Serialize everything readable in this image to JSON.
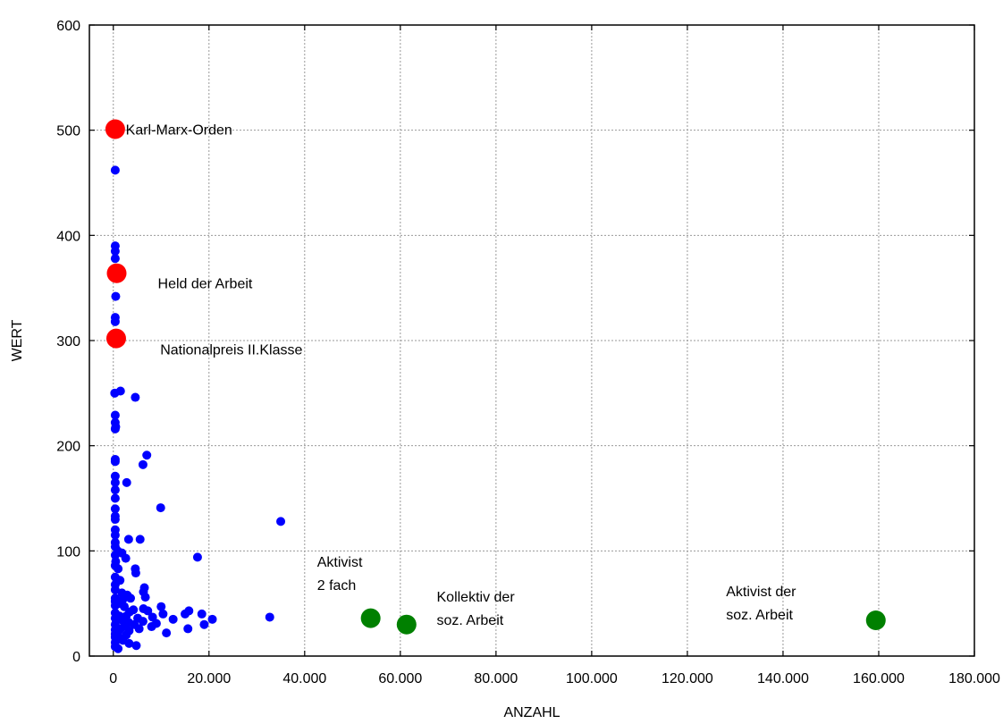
{
  "chart_data": {
    "type": "scatter",
    "xlabel": "ANZAHL",
    "ylabel": "WERT",
    "xlim": [
      -5000,
      180000
    ],
    "ylim": [
      0,
      600
    ],
    "x_ticks": [
      0,
      20000,
      40000,
      60000,
      80000,
      100000,
      120000,
      140000,
      160000,
      180000
    ],
    "x_tick_labels": [
      "0",
      "20.000",
      "40.000",
      "60.000",
      "80.000",
      "100.000",
      "120.000",
      "140.000",
      "160.000",
      "180.000"
    ],
    "y_ticks": [
      0,
      100,
      200,
      300,
      400,
      500,
      600
    ],
    "y_tick_labels": [
      "0",
      "100",
      "200",
      "300",
      "400",
      "500",
      "600"
    ],
    "grid": true,
    "colors": {
      "blue": "#0000ff",
      "red": "#ff0000",
      "green": "#008000"
    },
    "series": [
      {
        "color": "#0000ff",
        "points": [
          [
            400,
            462
          ],
          [
            400,
            390
          ],
          [
            400,
            385
          ],
          [
            400,
            378
          ],
          [
            500,
            342
          ],
          [
            400,
            322
          ],
          [
            400,
            318
          ],
          [
            300,
            250
          ],
          [
            1500,
            252
          ],
          [
            4600,
            246
          ],
          [
            400,
            229
          ],
          [
            400,
            222
          ],
          [
            500,
            218
          ],
          [
            400,
            216
          ],
          [
            7000,
            191
          ],
          [
            6200,
            182
          ],
          [
            400,
            187
          ],
          [
            400,
            185
          ],
          [
            2800,
            165
          ],
          [
            400,
            171
          ],
          [
            400,
            165
          ],
          [
            400,
            158
          ],
          [
            400,
            150
          ],
          [
            9900,
            141
          ],
          [
            400,
            140
          ],
          [
            400,
            133
          ],
          [
            400,
            130
          ],
          [
            35000,
            128
          ],
          [
            400,
            120
          ],
          [
            400,
            115
          ],
          [
            3200,
            111
          ],
          [
            5600,
            111
          ],
          [
            400,
            108
          ],
          [
            400,
            104
          ],
          [
            900,
            100
          ],
          [
            1800,
            98
          ],
          [
            400,
            96
          ],
          [
            17600,
            94
          ],
          [
            2600,
            93
          ],
          [
            500,
            90
          ],
          [
            400,
            86
          ],
          [
            1000,
            83
          ],
          [
            4600,
            83
          ],
          [
            4700,
            79
          ],
          [
            400,
            75
          ],
          [
            1400,
            72
          ],
          [
            400,
            68
          ],
          [
            6500,
            65
          ],
          [
            400,
            63
          ],
          [
            6300,
            61
          ],
          [
            1800,
            60
          ],
          [
            2900,
            58
          ],
          [
            6700,
            56
          ],
          [
            400,
            55
          ],
          [
            3600,
            55
          ],
          [
            2000,
            54
          ],
          [
            400,
            52
          ],
          [
            1100,
            50
          ],
          [
            400,
            48
          ],
          [
            2300,
            47
          ],
          [
            10000,
            47
          ],
          [
            6300,
            45
          ],
          [
            4200,
            44
          ],
          [
            7200,
            43
          ],
          [
            15800,
            43
          ],
          [
            3400,
            42
          ],
          [
            400,
            41
          ],
          [
            10400,
            40
          ],
          [
            15000,
            40
          ],
          [
            18500,
            40
          ],
          [
            1300,
            38
          ],
          [
            2700,
            38
          ],
          [
            8200,
            37
          ],
          [
            400,
            36
          ],
          [
            5100,
            36
          ],
          [
            32700,
            37
          ],
          [
            12500,
            35
          ],
          [
            20700,
            35
          ],
          [
            1900,
            34
          ],
          [
            6200,
            33
          ],
          [
            3200,
            32
          ],
          [
            9000,
            31
          ],
          [
            400,
            30
          ],
          [
            4400,
            30
          ],
          [
            19000,
            30
          ],
          [
            2500,
            28
          ],
          [
            8000,
            28
          ],
          [
            1500,
            26
          ],
          [
            5400,
            26
          ],
          [
            15600,
            26
          ],
          [
            400,
            25
          ],
          [
            3300,
            24
          ],
          [
            1000,
            23
          ],
          [
            11100,
            22
          ],
          [
            400,
            21
          ],
          [
            2700,
            20
          ],
          [
            400,
            18
          ],
          [
            1300,
            17
          ],
          [
            2000,
            15
          ],
          [
            400,
            13
          ],
          [
            3300,
            12
          ],
          [
            4800,
            10
          ],
          [
            400,
            9
          ],
          [
            1000,
            7
          ]
        ]
      },
      {
        "color": "#ff0000",
        "points": [
          [
            400,
            501
          ],
          [
            700,
            364
          ],
          [
            600,
            302
          ]
        ]
      },
      {
        "color": "#008000",
        "points": [
          [
            53800,
            36
          ],
          [
            61300,
            30
          ],
          [
            159400,
            34
          ]
        ]
      }
    ],
    "annotations": [
      {
        "lines": [
          "Karl-Marx-Orden"
        ],
        "x": 2600,
        "y": 501
      },
      {
        "lines": [
          "Held der Arbeit"
        ],
        "x": 9300,
        "y": 355
      },
      {
        "lines": [
          "Nationalpreis II.Klasse"
        ],
        "x": 9800,
        "y": 292
      },
      {
        "lines": [
          "Aktivist",
          "2 fach"
        ],
        "x": 42600,
        "y": 90
      },
      {
        "lines": [
          "Kollektiv der",
          "soz. Arbeit"
        ],
        "x": 67600,
        "y": 57
      },
      {
        "lines": [
          "Aktivist der",
          "soz. Arbeit"
        ],
        "x": 128100,
        "y": 62
      }
    ]
  }
}
